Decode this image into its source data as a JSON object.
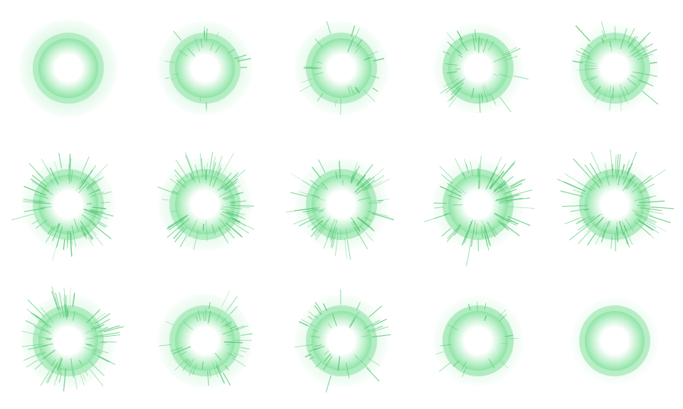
{
  "sprite_sheet": {
    "rows": 3,
    "columns": 5,
    "frame_count": 15,
    "colors": {
      "core": "#ffffff",
      "mid": "#b8efc7",
      "ring": "#8fe3a6",
      "halo": "#c7f3d3",
      "spike": "#4cc46e"
    },
    "frames": [
      {
        "frame": 1,
        "spike_level": 0.0,
        "halo_level": 0.9,
        "ring_level": 0.55
      },
      {
        "frame": 2,
        "spike_level": 0.25,
        "halo_level": 0.7,
        "ring_level": 0.6
      },
      {
        "frame": 3,
        "spike_level": 0.3,
        "halo_level": 0.65,
        "ring_level": 0.7
      },
      {
        "frame": 4,
        "spike_level": 0.5,
        "halo_level": 0.45,
        "ring_level": 0.85
      },
      {
        "frame": 5,
        "spike_level": 0.6,
        "halo_level": 0.35,
        "ring_level": 0.75
      },
      {
        "frame": 6,
        "spike_level": 0.9,
        "halo_level": 0.6,
        "ring_level": 0.7
      },
      {
        "frame": 7,
        "spike_level": 0.85,
        "halo_level": 0.65,
        "ring_level": 0.7
      },
      {
        "frame": 8,
        "spike_level": 0.85,
        "halo_level": 0.6,
        "ring_level": 0.75
      },
      {
        "frame": 9,
        "spike_level": 0.95,
        "halo_level": 0.5,
        "ring_level": 0.85
      },
      {
        "frame": 10,
        "spike_level": 0.95,
        "halo_level": 0.4,
        "ring_level": 0.8
      },
      {
        "frame": 11,
        "spike_level": 0.9,
        "halo_level": 0.65,
        "ring_level": 0.7
      },
      {
        "frame": 12,
        "spike_level": 0.55,
        "halo_level": 0.7,
        "ring_level": 0.7
      },
      {
        "frame": 13,
        "spike_level": 0.45,
        "halo_level": 0.6,
        "ring_level": 0.75
      },
      {
        "frame": 14,
        "spike_level": 0.2,
        "halo_level": 0.45,
        "ring_level": 0.85
      },
      {
        "frame": 15,
        "spike_level": 0.0,
        "halo_level": 0.25,
        "ring_level": 0.7
      }
    ]
  }
}
